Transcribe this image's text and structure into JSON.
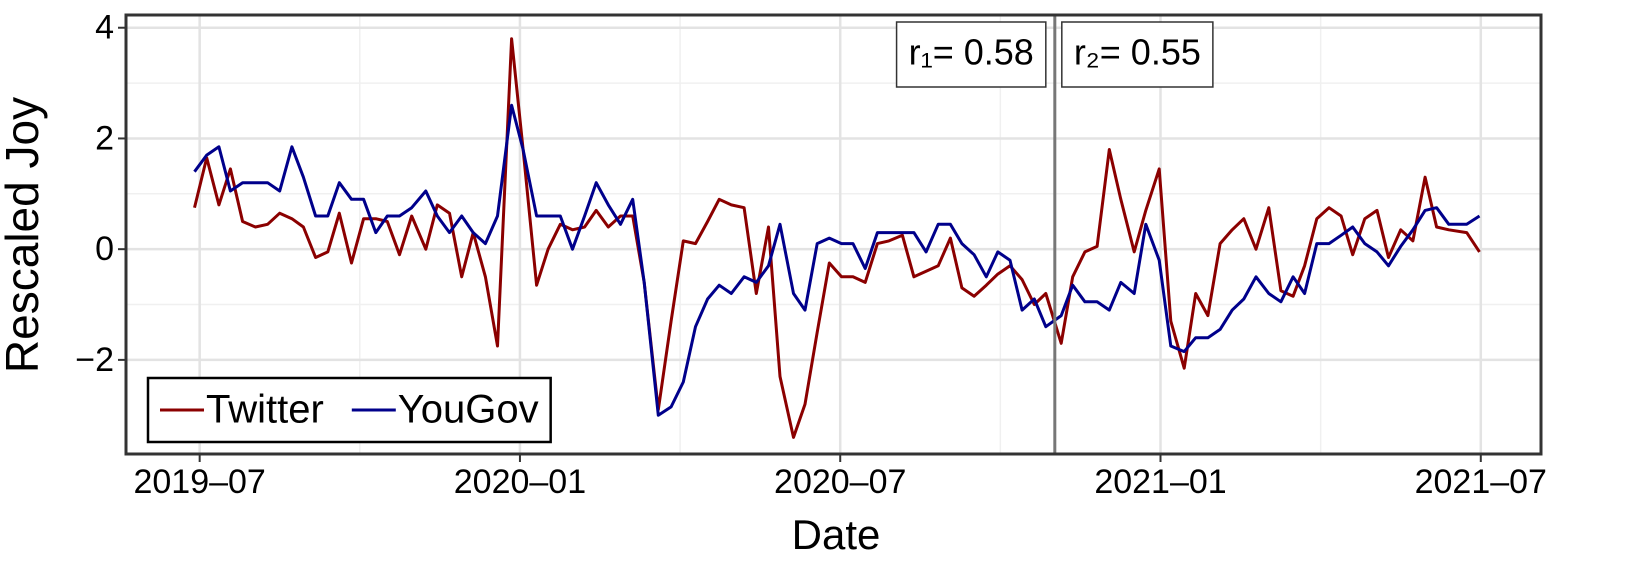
{
  "chart_data": {
    "type": "line",
    "xlabel": "Date",
    "ylabel": "Rescaled Joy",
    "x": [
      2019.492,
      2019.511,
      2019.53,
      2019.548,
      2019.567,
      2019.587,
      2019.606,
      2019.625,
      2019.644,
      2019.662,
      2019.681,
      2019.7,
      2019.718,
      2019.737,
      2019.756,
      2019.775,
      2019.793,
      2019.812,
      2019.831,
      2019.853,
      2019.871,
      2019.89,
      2019.909,
      2019.927,
      2019.946,
      2019.965,
      2019.987,
      2020.005,
      2020.026,
      2020.044,
      2020.063,
      2020.082,
      2020.101,
      2020.119,
      2020.138,
      2020.157,
      2020.176,
      2020.194,
      2020.216,
      2020.236,
      2020.255,
      2020.274,
      2020.293,
      2020.311,
      2020.33,
      2020.35,
      2020.369,
      2020.388,
      2020.406,
      2020.427,
      2020.445,
      2020.464,
      2020.483,
      2020.502,
      2020.52,
      2020.539,
      2020.558,
      2020.576,
      2020.597,
      2020.615,
      2020.634,
      2020.653,
      2020.672,
      2020.69,
      2020.709,
      2020.728,
      2020.746,
      2020.765,
      2020.784,
      2020.803,
      2020.821,
      2020.845,
      2020.863,
      2020.882,
      2020.901,
      2020.92,
      2020.938,
      2020.959,
      2020.977,
      2020.998,
      2021.016,
      2021.037,
      2021.055,
      2021.074,
      2021.093,
      2021.112,
      2021.13,
      2021.149,
      2021.169,
      2021.188,
      2021.207,
      2021.225,
      2021.244,
      2021.263,
      2021.282,
      2021.3,
      2021.319,
      2021.338,
      2021.356,
      2021.375,
      2021.394,
      2021.413,
      2021.431,
      2021.45,
      2021.478,
      2021.498
    ],
    "series": [
      {
        "name": "Twitter",
        "color": "#8b0000",
        "values": [
          0.75,
          1.65,
          0.8,
          1.45,
          0.5,
          0.4,
          0.45,
          0.65,
          0.55,
          0.4,
          -0.15,
          -0.05,
          0.65,
          -0.25,
          0.55,
          0.55,
          0.5,
          -0.1,
          0.6,
          0.0,
          0.8,
          0.65,
          -0.5,
          0.3,
          -0.5,
          -1.75,
          3.8,
          1.8,
          -0.65,
          0.0,
          0.45,
          0.35,
          0.4,
          0.7,
          0.4,
          0.6,
          0.6,
          -0.6,
          -2.9,
          -1.3,
          0.15,
          0.1,
          0.5,
          0.9,
          0.8,
          0.75,
          -0.8,
          0.4,
          -2.3,
          -3.4,
          -2.8,
          -1.5,
          -0.25,
          -0.5,
          -0.5,
          -0.6,
          0.1,
          0.15,
          0.25,
          -0.5,
          -0.4,
          -0.3,
          0.2,
          -0.7,
          -0.85,
          -0.65,
          -0.45,
          -0.3,
          -0.55,
          -1.0,
          -0.8,
          -1.7,
          -0.5,
          -0.05,
          0.05,
          1.8,
          0.9,
          -0.05,
          0.7,
          1.45,
          -1.3,
          -2.15,
          -0.8,
          -1.2,
          0.1,
          0.35,
          0.55,
          0.0,
          0.75,
          -0.75,
          -0.85,
          -0.3,
          0.55,
          0.75,
          0.6,
          -0.1,
          0.55,
          0.7,
          -0.15,
          0.35,
          0.15,
          1.3,
          0.4,
          0.35,
          0.3,
          -0.05
        ]
      },
      {
        "name": "YouGov",
        "color": "#00008b",
        "values": [
          1.4,
          1.7,
          1.85,
          1.05,
          1.2,
          1.2,
          1.2,
          1.05,
          1.85,
          1.3,
          0.6,
          0.6,
          1.2,
          0.9,
          0.9,
          0.3,
          0.6,
          0.6,
          0.75,
          1.05,
          0.6,
          0.3,
          0.6,
          0.3,
          0.1,
          0.6,
          2.6,
          1.8,
          0.6,
          0.6,
          0.6,
          0.0,
          0.6,
          1.2,
          0.8,
          0.45,
          0.9,
          -0.6,
          -3.0,
          -2.85,
          -2.4,
          -1.4,
          -0.9,
          -0.65,
          -0.8,
          -0.5,
          -0.6,
          -0.3,
          0.45,
          -0.8,
          -1.1,
          0.1,
          0.2,
          0.1,
          0.1,
          -0.35,
          0.3,
          0.3,
          0.3,
          0.3,
          -0.05,
          0.45,
          0.45,
          0.1,
          -0.1,
          -0.5,
          -0.05,
          -0.2,
          -1.1,
          -0.9,
          -1.4,
          -1.2,
          -0.65,
          -0.95,
          -0.95,
          -1.1,
          -0.6,
          -0.8,
          0.45,
          -0.2,
          -1.75,
          -1.85,
          -1.6,
          -1.6,
          -1.45,
          -1.1,
          -0.9,
          -0.5,
          -0.8,
          -0.95,
          -0.5,
          -0.8,
          0.1,
          0.1,
          0.25,
          0.4,
          0.1,
          -0.05,
          -0.3,
          0.05,
          0.35,
          0.7,
          0.75,
          0.45,
          0.45,
          0.6
        ]
      }
    ],
    "xlim": [
      2019.385,
      2021.594
    ],
    "xticks": [
      {
        "value": 2019.5,
        "label": "2019–07"
      },
      {
        "value": 2020.0,
        "label": "2020–01"
      },
      {
        "value": 2020.5,
        "label": "2020–07"
      },
      {
        "value": 2021.0,
        "label": "2021–01"
      },
      {
        "value": 2021.5,
        "label": "2021–07"
      }
    ],
    "ylim": [
      -3.7,
      4.23
    ],
    "yticks": [
      {
        "value": -2,
        "label": "−2"
      },
      0,
      2,
      4
    ],
    "grid": true,
    "legend": "bottom-left",
    "split_x": 2020.835,
    "annotations": [
      {
        "text": "r₁= 0.58"
      },
      {
        "text": "r₂= 0.55"
      }
    ]
  }
}
